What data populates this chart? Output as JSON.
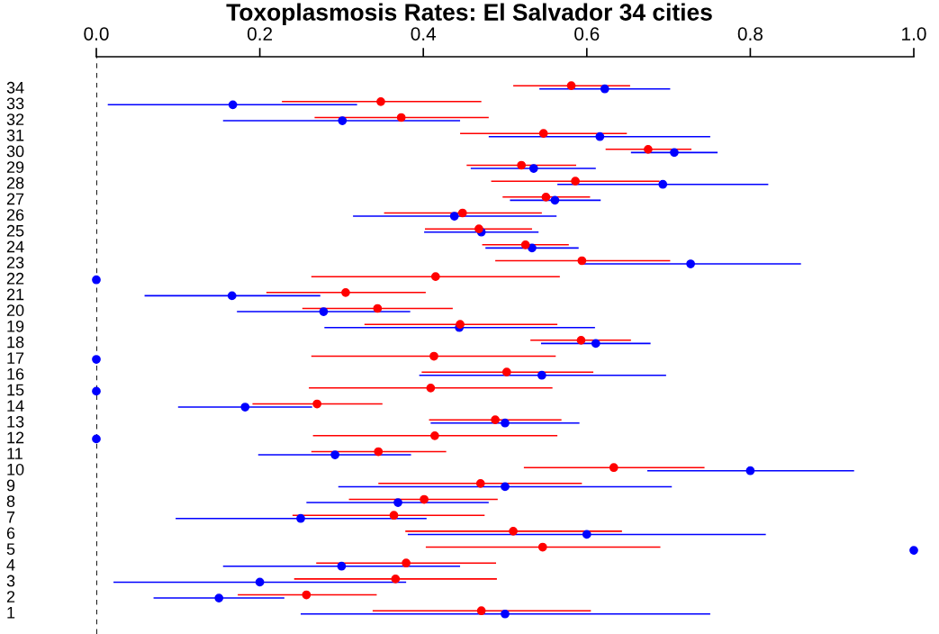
{
  "chart_data": {
    "type": "scatter",
    "title": "Toxoplasmosis Rates: El Salvador 34 cities",
    "orientation": "horizontal",
    "categories": [
      "34",
      "33",
      "32",
      "31",
      "30",
      "29",
      "28",
      "27",
      "26",
      "25",
      "24",
      "23",
      "22",
      "21",
      "20",
      "19",
      "18",
      "17",
      "16",
      "15",
      "14",
      "13",
      "12",
      "11",
      "10",
      "9",
      "8",
      "7",
      "6",
      "5",
      "4",
      "3",
      "2",
      "1"
    ],
    "xlim": [
      0,
      1
    ],
    "xticks": [
      {
        "value": 0,
        "label": "0.0"
      },
      {
        "value": 0.2,
        "label": "0.2"
      },
      {
        "value": 0.4,
        "label": "0.4"
      },
      {
        "value": 0.6,
        "label": "0.6"
      },
      {
        "value": 0.8,
        "label": "0.8"
      },
      {
        "value": 1,
        "label": "1.0"
      }
    ],
    "marker": "circle",
    "grid": false,
    "ref_lines": [
      {
        "axis": "x",
        "value": 0,
        "line_style": "dashed",
        "color": "#000000"
      }
    ],
    "series": [
      {
        "color": "#ff0000",
        "values": [
          0.581,
          0.348,
          0.373,
          0.547,
          0.675,
          0.52,
          0.586,
          0.55,
          0.448,
          0.468,
          0.525,
          0.594,
          0.415,
          0.305,
          0.344,
          0.445,
          0.593,
          0.413,
          0.502,
          0.409,
          0.27,
          0.488,
          0.414,
          0.345,
          0.633,
          0.47,
          0.401,
          0.364,
          0.51,
          0.546,
          0.379,
          0.366,
          0.257,
          0.471
        ],
        "errors": [
          [
            0.51,
            0.653
          ],
          [
            0.227,
            0.471
          ],
          [
            0.267,
            0.48
          ],
          [
            0.445,
            0.649
          ],
          [
            0.623,
            0.728
          ],
          [
            0.453,
            0.587
          ],
          [
            0.483,
            0.689
          ],
          [
            0.497,
            0.604
          ],
          [
            0.352,
            0.545
          ],
          [
            0.402,
            0.533
          ],
          [
            0.472,
            0.578
          ],
          [
            0.488,
            0.702
          ],
          [
            0.263,
            0.567
          ],
          [
            0.208,
            0.403
          ],
          [
            0.252,
            0.436
          ],
          [
            0.328,
            0.564
          ],
          [
            0.531,
            0.654
          ],
          [
            0.263,
            0.562
          ],
          [
            0.398,
            0.608
          ],
          [
            0.26,
            0.558
          ],
          [
            0.191,
            0.35
          ],
          [
            0.407,
            0.569
          ],
          [
            0.265,
            0.564
          ],
          [
            0.263,
            0.428
          ],
          [
            0.523,
            0.744
          ],
          [
            0.345,
            0.594
          ],
          [
            0.309,
            0.491
          ],
          [
            0.24,
            0.475
          ],
          [
            0.378,
            0.643
          ],
          [
            0.403,
            0.69
          ],
          [
            0.269,
            0.489
          ],
          [
            0.242,
            0.49
          ],
          [
            0.173,
            0.343
          ],
          [
            0.338,
            0.605
          ]
        ]
      },
      {
        "color": "#0000ff",
        "values": [
          0.622,
          0.167,
          0.301,
          0.616,
          0.707,
          0.535,
          0.693,
          0.561,
          0.438,
          0.471,
          0.533,
          0.727,
          0,
          0.166,
          0.278,
          0.444,
          0.611,
          0,
          0.545,
          0,
          0.182,
          0.5,
          0,
          0.292,
          0.8,
          0.5,
          0.369,
          0.25,
          0.6,
          1.0,
          0.3,
          0.2,
          0.15,
          0.5
        ],
        "errors": [
          [
            0.542,
            0.702
          ],
          [
            0.014,
            0.319
          ],
          [
            0.155,
            0.445
          ],
          [
            0.48,
            0.751
          ],
          [
            0.654,
            0.76
          ],
          [
            0.458,
            0.611
          ],
          [
            0.564,
            0.822
          ],
          [
            0.506,
            0.617
          ],
          [
            0.314,
            0.563
          ],
          [
            0.401,
            0.541
          ],
          [
            0.476,
            0.59
          ],
          [
            0.596,
            0.862
          ],
          null,
          [
            0.059,
            0.274
          ],
          [
            0.172,
            0.384
          ],
          [
            0.279,
            0.61
          ],
          [
            0.544,
            0.678
          ],
          null,
          [
            0.395,
            0.697
          ],
          null,
          [
            0.1,
            0.264
          ],
          [
            0.409,
            0.591
          ],
          null,
          [
            0.198,
            0.385
          ],
          [
            0.674,
            0.927
          ],
          [
            0.296,
            0.704
          ],
          [
            0.257,
            0.48
          ],
          [
            0.097,
            0.404
          ],
          [
            0.381,
            0.819
          ],
          null,
          [
            0.155,
            0.445
          ],
          [
            0.021,
            0.379
          ],
          [
            0.07,
            0.23
          ],
          [
            0.25,
            0.751
          ]
        ]
      }
    ]
  }
}
